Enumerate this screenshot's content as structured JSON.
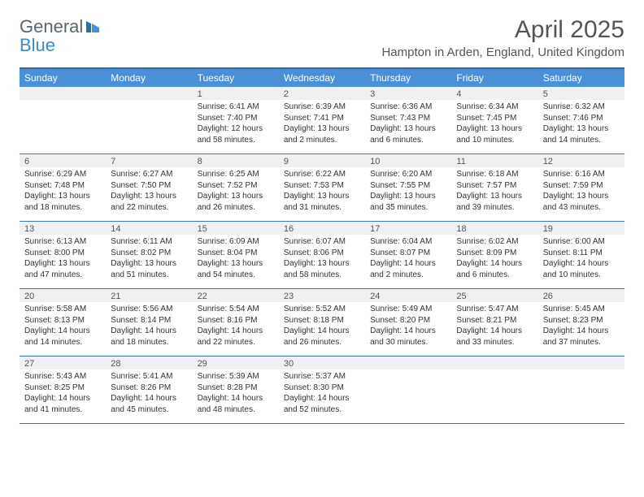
{
  "logo": {
    "text1": "General",
    "text2": "Blue"
  },
  "title": "April 2025",
  "location": "Hampton in Arden, England, United Kingdom",
  "colors": {
    "header_bg": "#4a90d9",
    "header_text": "#ffffff",
    "border": "#3a7ab5",
    "daynum_bg": "#eef0f2",
    "text": "#333333"
  },
  "dow": [
    "Sunday",
    "Monday",
    "Tuesday",
    "Wednesday",
    "Thursday",
    "Friday",
    "Saturday"
  ],
  "weeks": [
    [
      {
        "n": "",
        "sr": "",
        "ss": "",
        "dl": ""
      },
      {
        "n": "",
        "sr": "",
        "ss": "",
        "dl": ""
      },
      {
        "n": "1",
        "sr": "Sunrise: 6:41 AM",
        "ss": "Sunset: 7:40 PM",
        "dl": "Daylight: 12 hours and 58 minutes."
      },
      {
        "n": "2",
        "sr": "Sunrise: 6:39 AM",
        "ss": "Sunset: 7:41 PM",
        "dl": "Daylight: 13 hours and 2 minutes."
      },
      {
        "n": "3",
        "sr": "Sunrise: 6:36 AM",
        "ss": "Sunset: 7:43 PM",
        "dl": "Daylight: 13 hours and 6 minutes."
      },
      {
        "n": "4",
        "sr": "Sunrise: 6:34 AM",
        "ss": "Sunset: 7:45 PM",
        "dl": "Daylight: 13 hours and 10 minutes."
      },
      {
        "n": "5",
        "sr": "Sunrise: 6:32 AM",
        "ss": "Sunset: 7:46 PM",
        "dl": "Daylight: 13 hours and 14 minutes."
      }
    ],
    [
      {
        "n": "6",
        "sr": "Sunrise: 6:29 AM",
        "ss": "Sunset: 7:48 PM",
        "dl": "Daylight: 13 hours and 18 minutes."
      },
      {
        "n": "7",
        "sr": "Sunrise: 6:27 AM",
        "ss": "Sunset: 7:50 PM",
        "dl": "Daylight: 13 hours and 22 minutes."
      },
      {
        "n": "8",
        "sr": "Sunrise: 6:25 AM",
        "ss": "Sunset: 7:52 PM",
        "dl": "Daylight: 13 hours and 26 minutes."
      },
      {
        "n": "9",
        "sr": "Sunrise: 6:22 AM",
        "ss": "Sunset: 7:53 PM",
        "dl": "Daylight: 13 hours and 31 minutes."
      },
      {
        "n": "10",
        "sr": "Sunrise: 6:20 AM",
        "ss": "Sunset: 7:55 PM",
        "dl": "Daylight: 13 hours and 35 minutes."
      },
      {
        "n": "11",
        "sr": "Sunrise: 6:18 AM",
        "ss": "Sunset: 7:57 PM",
        "dl": "Daylight: 13 hours and 39 minutes."
      },
      {
        "n": "12",
        "sr": "Sunrise: 6:16 AM",
        "ss": "Sunset: 7:59 PM",
        "dl": "Daylight: 13 hours and 43 minutes."
      }
    ],
    [
      {
        "n": "13",
        "sr": "Sunrise: 6:13 AM",
        "ss": "Sunset: 8:00 PM",
        "dl": "Daylight: 13 hours and 47 minutes."
      },
      {
        "n": "14",
        "sr": "Sunrise: 6:11 AM",
        "ss": "Sunset: 8:02 PM",
        "dl": "Daylight: 13 hours and 51 minutes."
      },
      {
        "n": "15",
        "sr": "Sunrise: 6:09 AM",
        "ss": "Sunset: 8:04 PM",
        "dl": "Daylight: 13 hours and 54 minutes."
      },
      {
        "n": "16",
        "sr": "Sunrise: 6:07 AM",
        "ss": "Sunset: 8:06 PM",
        "dl": "Daylight: 13 hours and 58 minutes."
      },
      {
        "n": "17",
        "sr": "Sunrise: 6:04 AM",
        "ss": "Sunset: 8:07 PM",
        "dl": "Daylight: 14 hours and 2 minutes."
      },
      {
        "n": "18",
        "sr": "Sunrise: 6:02 AM",
        "ss": "Sunset: 8:09 PM",
        "dl": "Daylight: 14 hours and 6 minutes."
      },
      {
        "n": "19",
        "sr": "Sunrise: 6:00 AM",
        "ss": "Sunset: 8:11 PM",
        "dl": "Daylight: 14 hours and 10 minutes."
      }
    ],
    [
      {
        "n": "20",
        "sr": "Sunrise: 5:58 AM",
        "ss": "Sunset: 8:13 PM",
        "dl": "Daylight: 14 hours and 14 minutes."
      },
      {
        "n": "21",
        "sr": "Sunrise: 5:56 AM",
        "ss": "Sunset: 8:14 PM",
        "dl": "Daylight: 14 hours and 18 minutes."
      },
      {
        "n": "22",
        "sr": "Sunrise: 5:54 AM",
        "ss": "Sunset: 8:16 PM",
        "dl": "Daylight: 14 hours and 22 minutes."
      },
      {
        "n": "23",
        "sr": "Sunrise: 5:52 AM",
        "ss": "Sunset: 8:18 PM",
        "dl": "Daylight: 14 hours and 26 minutes."
      },
      {
        "n": "24",
        "sr": "Sunrise: 5:49 AM",
        "ss": "Sunset: 8:20 PM",
        "dl": "Daylight: 14 hours and 30 minutes."
      },
      {
        "n": "25",
        "sr": "Sunrise: 5:47 AM",
        "ss": "Sunset: 8:21 PM",
        "dl": "Daylight: 14 hours and 33 minutes."
      },
      {
        "n": "26",
        "sr": "Sunrise: 5:45 AM",
        "ss": "Sunset: 8:23 PM",
        "dl": "Daylight: 14 hours and 37 minutes."
      }
    ],
    [
      {
        "n": "27",
        "sr": "Sunrise: 5:43 AM",
        "ss": "Sunset: 8:25 PM",
        "dl": "Daylight: 14 hours and 41 minutes."
      },
      {
        "n": "28",
        "sr": "Sunrise: 5:41 AM",
        "ss": "Sunset: 8:26 PM",
        "dl": "Daylight: 14 hours and 45 minutes."
      },
      {
        "n": "29",
        "sr": "Sunrise: 5:39 AM",
        "ss": "Sunset: 8:28 PM",
        "dl": "Daylight: 14 hours and 48 minutes."
      },
      {
        "n": "30",
        "sr": "Sunrise: 5:37 AM",
        "ss": "Sunset: 8:30 PM",
        "dl": "Daylight: 14 hours and 52 minutes."
      },
      {
        "n": "",
        "sr": "",
        "ss": "",
        "dl": ""
      },
      {
        "n": "",
        "sr": "",
        "ss": "",
        "dl": ""
      },
      {
        "n": "",
        "sr": "",
        "ss": "",
        "dl": ""
      }
    ]
  ]
}
